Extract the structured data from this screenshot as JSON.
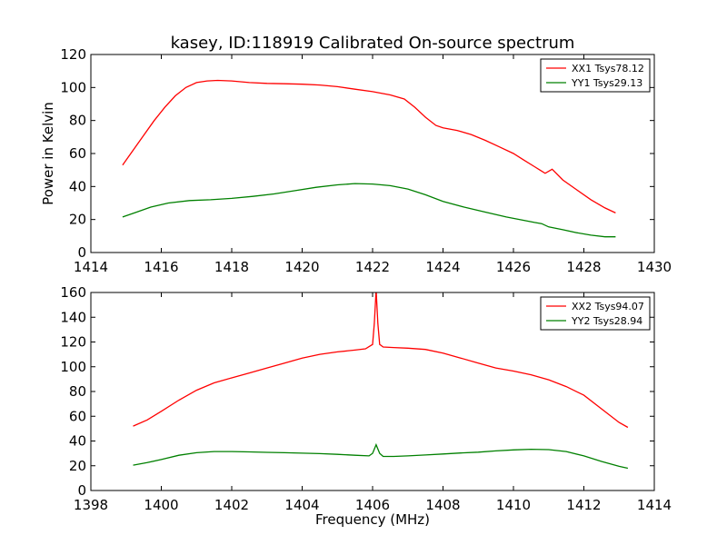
{
  "title": "kasey, ID:118919 Calibrated On-source spectrum",
  "chart_data": [
    {
      "type": "line",
      "ylabel": "Power in Kelvin",
      "xlabel": "",
      "xlim": [
        1414,
        1430
      ],
      "ylim": [
        0,
        120
      ],
      "xticks": [
        "1414",
        "1416",
        "1418",
        "1420",
        "1422",
        "1424",
        "1426",
        "1428",
        "1430"
      ],
      "yticks": [
        "0",
        "20",
        "40",
        "60",
        "80",
        "100",
        "120"
      ],
      "legend_position": "top-right",
      "series": [
        {
          "name": "XX1 Tsys78.12",
          "color": "#ff0000",
          "x": [
            1414.9,
            1415.2,
            1415.5,
            1415.8,
            1416.1,
            1416.4,
            1416.7,
            1417.0,
            1417.3,
            1417.6,
            1418.0,
            1418.5,
            1419.0,
            1419.5,
            1420.0,
            1420.5,
            1421.0,
            1421.5,
            1422.0,
            1422.5,
            1422.9,
            1423.2,
            1423.5,
            1423.8,
            1424.0,
            1424.4,
            1424.8,
            1425.2,
            1425.6,
            1426.0,
            1426.3,
            1426.6,
            1426.75,
            1426.9,
            1427.1,
            1427.4,
            1427.8,
            1428.2,
            1428.6,
            1428.9
          ],
          "y": [
            53,
            62,
            71,
            80,
            88,
            95,
            100,
            103,
            104,
            104.3,
            104,
            103,
            102.5,
            102.3,
            102,
            101.5,
            100.5,
            99,
            97.5,
            95.5,
            93,
            88,
            82,
            77,
            75.5,
            74,
            71.5,
            68,
            64,
            60,
            56,
            52,
            50,
            48,
            50.5,
            44,
            38,
            32,
            27,
            24
          ]
        },
        {
          "name": "YY1 Tsys29.13",
          "color": "#008000",
          "x": [
            1414.9,
            1415.3,
            1415.7,
            1416.2,
            1416.8,
            1417.4,
            1418.0,
            1418.6,
            1419.2,
            1419.8,
            1420.4,
            1421.0,
            1421.5,
            1422.0,
            1422.5,
            1423.0,
            1423.5,
            1424.0,
            1424.6,
            1425.2,
            1425.8,
            1426.3,
            1426.6,
            1426.8,
            1427.0,
            1427.4,
            1427.8,
            1428.2,
            1428.6,
            1428.9
          ],
          "y": [
            21.5,
            24.5,
            27.5,
            30,
            31.5,
            32,
            32.8,
            34,
            35.5,
            37.5,
            39.5,
            41,
            41.8,
            41.5,
            40.5,
            38.5,
            35,
            31,
            27.5,
            24.5,
            21.5,
            19.5,
            18.2,
            17.5,
            15.5,
            13.8,
            12,
            10.5,
            9.5,
            9.5
          ]
        }
      ]
    },
    {
      "type": "line",
      "ylabel": "",
      "xlabel": "Frequency (MHz)",
      "xlim": [
        1398,
        1414
      ],
      "ylim": [
        0,
        160
      ],
      "xticks": [
        "1398",
        "1400",
        "1402",
        "1404",
        "1406",
        "1408",
        "1410",
        "1412",
        "1414"
      ],
      "yticks": [
        "0",
        "20",
        "40",
        "60",
        "80",
        "100",
        "120",
        "140",
        "160"
      ],
      "legend_position": "top-right",
      "series": [
        {
          "name": "XX2 Tsys94.07",
          "color": "#ff0000",
          "x": [
            1399.2,
            1399.6,
            1400.0,
            1400.5,
            1401.0,
            1401.5,
            1402.0,
            1402.5,
            1403.0,
            1403.5,
            1404.0,
            1404.5,
            1405.0,
            1405.5,
            1405.8,
            1406.0,
            1406.05,
            1406.1,
            1406.15,
            1406.2,
            1406.3,
            1406.6,
            1407.0,
            1407.5,
            1408.0,
            1408.5,
            1409.0,
            1409.5,
            1410.0,
            1410.5,
            1411.0,
            1411.5,
            1412.0,
            1412.5,
            1413.0,
            1413.25
          ],
          "y": [
            52,
            57,
            64,
            73,
            81,
            87,
            91,
            95,
            99,
            103,
            107,
            110,
            112,
            113.5,
            114.5,
            118,
            135,
            162,
            135,
            118,
            116,
            115.5,
            115,
            114,
            111,
            107,
            103,
            99,
            96.5,
            93.5,
            89.5,
            84,
            77,
            66,
            55,
            51
          ]
        },
        {
          "name": "YY2 Tsys28.94",
          "color": "#008000",
          "x": [
            1399.2,
            1399.6,
            1400.0,
            1400.5,
            1401.0,
            1401.5,
            1402.0,
            1402.5,
            1403.0,
            1403.5,
            1404.0,
            1404.5,
            1405.0,
            1405.5,
            1405.9,
            1406.0,
            1406.1,
            1406.2,
            1406.3,
            1406.6,
            1407.0,
            1407.5,
            1408.0,
            1408.5,
            1409.0,
            1409.5,
            1410.0,
            1410.5,
            1411.0,
            1411.5,
            1412.0,
            1412.5,
            1413.0,
            1413.25
          ],
          "y": [
            20.5,
            22.5,
            25,
            28.5,
            30.5,
            31.5,
            31.5,
            31.2,
            30.8,
            30.5,
            30.2,
            29.8,
            29.2,
            28.5,
            28,
            30,
            37,
            30,
            27.5,
            27.5,
            28,
            28.7,
            29.5,
            30.3,
            31,
            32,
            32.8,
            33.3,
            33,
            31.5,
            28,
            23.5,
            19.5,
            18
          ]
        }
      ]
    }
  ]
}
